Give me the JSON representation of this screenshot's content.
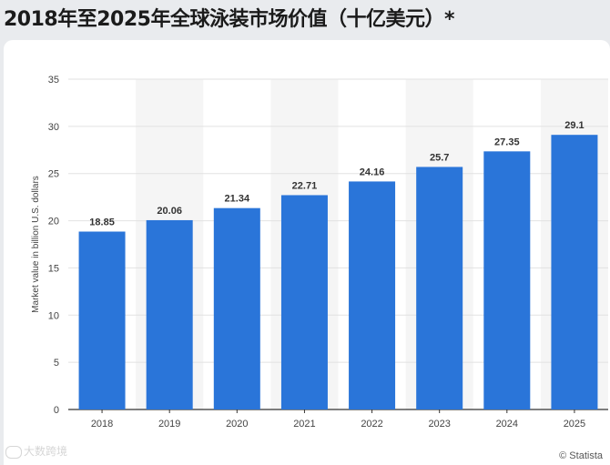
{
  "page": {
    "title": "2018年至2025年全球泳装市场价值（十亿美元）*"
  },
  "chart_data": {
    "type": "bar",
    "title": "2018年至2025年全球泳装市场价值（十亿美元）*",
    "categories": [
      "2018",
      "2019",
      "2020",
      "2021",
      "2022",
      "2023",
      "2024",
      "2025"
    ],
    "values": [
      18.85,
      20.06,
      21.34,
      22.71,
      24.16,
      25.7,
      27.35,
      29.1
    ],
    "value_labels": [
      "18.85",
      "20.06",
      "21.34",
      "22.71",
      "24.16",
      "25.7",
      "27.35",
      "29.1"
    ],
    "xlabel": "",
    "ylabel": "Market value in billion U.S. dollars",
    "ylim": [
      0,
      35
    ],
    "yticks": [
      0,
      5,
      10,
      15,
      20,
      25,
      30,
      35
    ],
    "grid": true,
    "colors": {
      "bar": "#2a75d9",
      "band": "#f5f5f5",
      "grid": "#e2e2e2",
      "axis": "#333333"
    }
  },
  "footer": {
    "credit": "© Statista",
    "watermark": "大数跨境"
  }
}
